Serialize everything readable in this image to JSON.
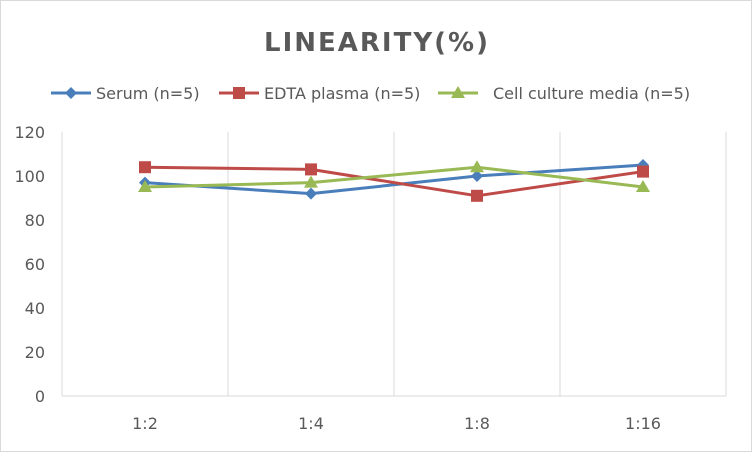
{
  "chart_data": {
    "type": "line",
    "title": "LINEARITY(%)",
    "categories": [
      "1:2",
      "1:4",
      "1:8",
      "1:16"
    ],
    "series": [
      {
        "name": "Serum (n=5)",
        "values": [
          97,
          92,
          100,
          105
        ],
        "color": "#4a7ebb",
        "marker": "diamond"
      },
      {
        "name": "EDTA plasma (n=5)",
        "values": [
          104,
          103,
          91,
          102
        ],
        "color": "#be4b48",
        "marker": "square"
      },
      {
        "name": "Cell culture media (n=5)",
        "values": [
          95,
          97,
          104,
          95
        ],
        "color": "#98b954",
        "marker": "triangle"
      }
    ],
    "ylim": [
      0,
      120
    ],
    "yticks": [
      0,
      20,
      40,
      60,
      80,
      100,
      120
    ],
    "grid": "vertical category separators",
    "legend": "top"
  }
}
